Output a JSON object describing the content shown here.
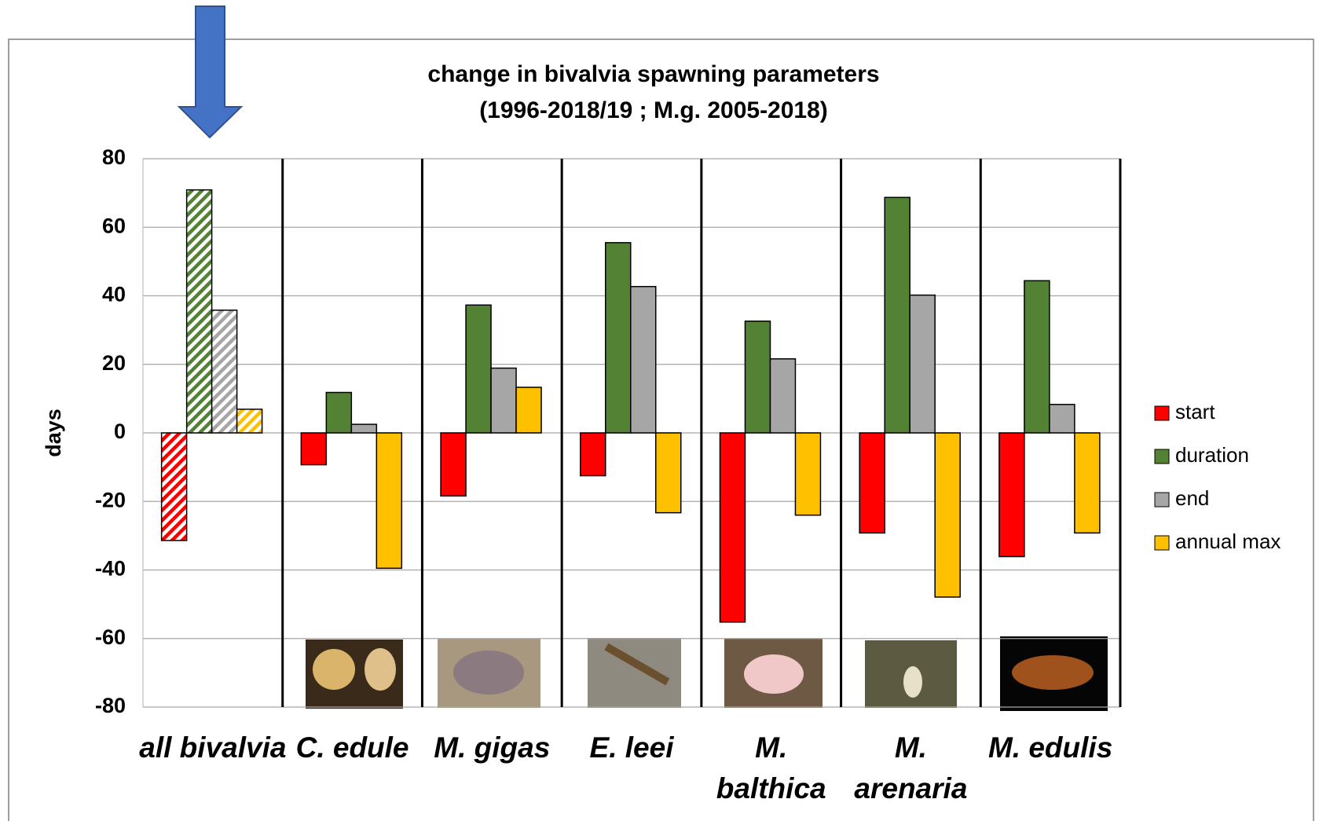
{
  "chart_data": {
    "type": "bar",
    "title": [
      "change in bivalvia spawning parameters",
      "(1996-2018/19 ; M.g. 2005-2018)"
    ],
    "y_label": "days",
    "categories": [
      "all bivalvia",
      "C. edule",
      "M. gigas",
      "E. leei",
      "M. balthica",
      "M. arenaria",
      "M. edulis"
    ],
    "series": [
      {
        "name": "start",
        "color": "#ff0000",
        "values": [
          -31.4,
          -9.3,
          -18.4,
          -12.5,
          -55.2,
          -29.2,
          -36.1
        ]
      },
      {
        "name": "duration",
        "color": "#548235",
        "values": [
          70.9,
          11.8,
          37.3,
          55.5,
          32.6,
          68.7,
          44.4
        ]
      },
      {
        "name": "end",
        "color": "#a6a6a6",
        "values": [
          35.8,
          2.5,
          18.9,
          42.7,
          21.6,
          40.2,
          8.3
        ]
      },
      {
        "name": "annual max",
        "color": "#ffc000",
        "values": [
          6.9,
          -39.5,
          13.3,
          -23.3,
          -24.0,
          -47.9,
          -29.2
        ]
      }
    ],
    "hatched_categories": [
      0
    ],
    "ylim": [
      -80,
      80
    ],
    "yticks": [
      -80,
      -60,
      -40,
      -20,
      0,
      20,
      40,
      60,
      80
    ],
    "grid": true,
    "legend": "right"
  }
}
